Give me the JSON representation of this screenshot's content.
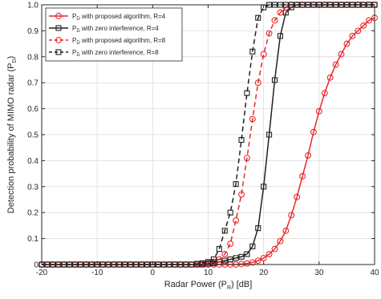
{
  "chart_data": {
    "type": "line",
    "title": "",
    "xlabel": "Radar Power (P_R) [dB]",
    "ylabel": "Detection probability of MIMO radar (P_D)",
    "xlim": [
      -20,
      40
    ],
    "ylim": [
      0,
      1
    ],
    "xticks": [
      -20,
      -10,
      0,
      10,
      20,
      30,
      40
    ],
    "yticks": [
      0,
      0.1,
      0.2,
      0.3,
      0.4,
      0.5,
      0.6,
      0.7,
      0.8,
      0.9,
      1.0
    ],
    "xtick_labels": [
      "-20",
      "-10",
      "0",
      "10",
      "20",
      "30",
      "40"
    ],
    "ytick_labels": [
      "0",
      "0.1",
      "0.2",
      "0.3",
      "0.4",
      "0.5",
      "0.6",
      "0.7",
      "0.8",
      "0.9",
      "1.0"
    ],
    "grid": true,
    "legend_position": "top-left",
    "x": [
      -20,
      -19,
      -18,
      -17,
      -16,
      -15,
      -14,
      -13,
      -12,
      -11,
      -10,
      -9,
      -8,
      -7,
      -6,
      -5,
      -4,
      -3,
      -2,
      -1,
      0,
      1,
      2,
      3,
      4,
      5,
      6,
      7,
      8,
      9,
      10,
      11,
      12,
      13,
      14,
      15,
      16,
      17,
      18,
      19,
      20,
      21,
      22,
      23,
      24,
      25,
      26,
      27,
      28,
      29,
      30,
      31,
      32,
      33,
      34,
      35,
      36,
      37,
      38,
      39,
      40
    ],
    "series": [
      {
        "name": "P_D with proposed algorithm, R=4",
        "color": "#e8262b",
        "line_style": "solid",
        "marker": "circle",
        "values": [
          0,
          0,
          0,
          0,
          0,
          0,
          0,
          0,
          0,
          0,
          0,
          0,
          0,
          0,
          0,
          0,
          0,
          0,
          0,
          0,
          0,
          0,
          0,
          0,
          0,
          0,
          0,
          0,
          0,
          0,
          0,
          0,
          0,
          0,
          0,
          0,
          0.002,
          0.004,
          0.008,
          0.015,
          0.025,
          0.04,
          0.06,
          0.09,
          0.13,
          0.19,
          0.26,
          0.34,
          0.42,
          0.51,
          0.59,
          0.66,
          0.72,
          0.77,
          0.81,
          0.85,
          0.88,
          0.9,
          0.92,
          0.94,
          0.95
        ]
      },
      {
        "name": "P_D with zero interference, R=4",
        "color": "#222222",
        "line_style": "solid",
        "marker": "square",
        "values": [
          0,
          0,
          0,
          0,
          0,
          0,
          0,
          0,
          0,
          0,
          0,
          0,
          0,
          0,
          0,
          0,
          0,
          0,
          0,
          0,
          0,
          0,
          0,
          0,
          0,
          0,
          0,
          0,
          0,
          0,
          0.003,
          0.005,
          0.01,
          0.015,
          0.02,
          0.025,
          0.03,
          0.04,
          0.07,
          0.14,
          0.3,
          0.5,
          0.71,
          0.88,
          0.97,
          0.99,
          1.0,
          1.0,
          1.0,
          1.0,
          1.0,
          1.0,
          1.0,
          1.0,
          1.0,
          1.0,
          1.0,
          1.0,
          1.0,
          1.0,
          1.0
        ]
      },
      {
        "name": "P_D with proposed algorithm, R=8",
        "color": "#e8262b",
        "line_style": "dashed",
        "marker": "circle",
        "values": [
          0,
          0,
          0,
          0,
          0,
          0,
          0,
          0,
          0,
          0,
          0,
          0,
          0,
          0,
          0,
          0,
          0,
          0,
          0,
          0,
          0,
          0,
          0,
          0,
          0,
          0,
          0,
          0,
          0,
          0.002,
          0.005,
          0.01,
          0.02,
          0.04,
          0.08,
          0.17,
          0.27,
          0.41,
          0.56,
          0.7,
          0.81,
          0.89,
          0.94,
          0.97,
          0.99,
          1.0,
          1.0,
          1.0,
          1.0,
          1.0,
          1.0,
          1.0,
          1.0,
          1.0,
          1.0,
          1.0,
          1.0,
          1.0,
          1.0,
          1.0,
          1.0
        ]
      },
      {
        "name": "P_D with zero interference, R=8",
        "color": "#222222",
        "line_style": "dashed",
        "marker": "square",
        "values": [
          0,
          0,
          0,
          0,
          0,
          0,
          0,
          0,
          0,
          0,
          0,
          0,
          0,
          0,
          0,
          0,
          0,
          0,
          0,
          0,
          0,
          0,
          0,
          0,
          0,
          0,
          0,
          0,
          0.003,
          0.005,
          0.01,
          0.02,
          0.06,
          0.13,
          0.2,
          0.31,
          0.48,
          0.66,
          0.82,
          0.95,
          0.99,
          1.0,
          1.0,
          1.0,
          1.0,
          1.0,
          1.0,
          1.0,
          1.0,
          1.0,
          1.0,
          1.0,
          1.0,
          1.0,
          1.0,
          1.0,
          1.0,
          1.0,
          1.0,
          1.0,
          1.0
        ]
      }
    ]
  },
  "labels": {
    "xlabel_parts": {
      "before": "Radar Power (P",
      "sub": "R",
      "after": ") [dB]"
    },
    "ylabel_parts": {
      "before": "Detection probability of MIMO radar (P",
      "sub": "D",
      "after": ")"
    },
    "legend_prefix": "P",
    "legend_sub": "D",
    "legend_suffixes": [
      " with proposed algorithm, R=4",
      " with zero interference, R=4",
      " with proposed algorithm, R=8",
      " with zero interference, R=8"
    ]
  }
}
